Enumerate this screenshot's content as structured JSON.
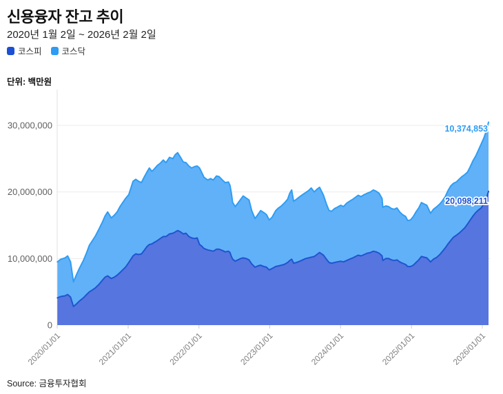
{
  "header": {
    "title": "신용융자 잔고 추이",
    "subtitle": "2020년 1월 2일 ~ 2026년 2월 2일",
    "unit_label": "단위: 백만원"
  },
  "legend": {
    "items": [
      {
        "label": "코스피",
        "color": "#1c50d4"
      },
      {
        "label": "코스닥",
        "color": "#2e9cf4"
      }
    ]
  },
  "source": "Source: 금융투자협회",
  "colors": {
    "grid": "#ebebeb",
    "axis": "#e2e2e2",
    "tick": "#cccccc",
    "y_label": "#5f5f5f",
    "x_label": "#808080",
    "kospi_fill": "#5775de",
    "kospi_line": "#1e55d0",
    "kosdaq_fill": "#61b1f8",
    "kosdaq_line": "#2f9df3"
  },
  "chart_data": {
    "type": "area",
    "stacked": true,
    "title": "신용융자 잔고 추이",
    "ylabel": "백만원",
    "grid": true,
    "legend_position": "top-left",
    "x_domain": [
      "2020-01-01",
      "2026-02-02"
    ],
    "ylim": [
      0,
      35000000
    ],
    "y_ticks": [
      0,
      10000000,
      20000000,
      30000000
    ],
    "y_tick_labels": [
      "0",
      "10,000,000",
      "20,000,000",
      "30,000,000"
    ],
    "x_ticks": [
      "2020-01-01",
      "2021-01-01",
      "2022-01-01",
      "2023-01-01",
      "2024-01-01",
      "2025-01-01",
      "2026-01-01"
    ],
    "x_tick_labels": [
      "2020/01/01",
      "2021/01/01",
      "2022/01/01",
      "2023/01/01",
      "2024/01/01",
      "2025/01/01",
      "2026/01/01"
    ],
    "dates": [
      "2020-01-02",
      "2020-01-20",
      "2020-02-10",
      "2020-02-24",
      "2020-03-10",
      "2020-03-25",
      "2020-04-10",
      "2020-04-24",
      "2020-05-15",
      "2020-06-01",
      "2020-06-15",
      "2020-07-01",
      "2020-07-16",
      "2020-08-03",
      "2020-08-20",
      "2020-09-04",
      "2020-09-17",
      "2020-10-06",
      "2020-10-21",
      "2020-11-05",
      "2020-11-20",
      "2020-12-04",
      "2020-12-18",
      "2021-01-04",
      "2021-01-15",
      "2021-01-26",
      "2021-02-09",
      "2021-02-24",
      "2021-03-10",
      "2021-03-24",
      "2021-04-08",
      "2021-04-20",
      "2021-05-03",
      "2021-05-14",
      "2021-06-01",
      "2021-06-15",
      "2021-07-01",
      "2021-07-15",
      "2021-08-02",
      "2021-08-19",
      "2021-09-01",
      "2021-09-13",
      "2021-09-28",
      "2021-10-12",
      "2021-10-26",
      "2021-11-10",
      "2021-11-24",
      "2021-12-09",
      "2021-12-23",
      "2022-01-04",
      "2022-01-14",
      "2022-01-27",
      "2022-02-15",
      "2022-03-02",
      "2022-03-16",
      "2022-04-01",
      "2022-04-15",
      "2022-05-02",
      "2022-05-16",
      "2022-06-02",
      "2022-06-10",
      "2022-06-17",
      "2022-06-24",
      "2022-07-07",
      "2022-07-20",
      "2022-08-04",
      "2022-08-17",
      "2022-09-01",
      "2022-09-16",
      "2022-09-30",
      "2022-10-17",
      "2022-11-01",
      "2022-11-15",
      "2022-12-01",
      "2022-12-15",
      "2022-12-29",
      "2023-01-13",
      "2023-02-01",
      "2023-02-15",
      "2023-03-02",
      "2023-03-16",
      "2023-04-03",
      "2023-04-14",
      "2023-04-24",
      "2023-05-04",
      "2023-05-19",
      "2023-06-05",
      "2023-06-20",
      "2023-07-05",
      "2023-07-20",
      "2023-08-03",
      "2023-08-18",
      "2023-09-01",
      "2023-09-15",
      "2023-10-05",
      "2023-10-20",
      "2023-11-03",
      "2023-11-16",
      "2023-12-01",
      "2023-12-15",
      "2024-01-02",
      "2024-01-16",
      "2024-02-01",
      "2024-02-16",
      "2024-03-04",
      "2024-03-18",
      "2024-04-01",
      "2024-04-16",
      "2024-05-02",
      "2024-05-17",
      "2024-06-03",
      "2024-06-18",
      "2024-07-03",
      "2024-07-18",
      "2024-08-02",
      "2024-08-06",
      "2024-08-21",
      "2024-09-05",
      "2024-09-20",
      "2024-10-04",
      "2024-10-18",
      "2024-11-01",
      "2024-11-15",
      "2024-12-02",
      "2024-12-12",
      "2024-12-27",
      "2025-01-10",
      "2025-01-24",
      "2025-02-07",
      "2025-02-21",
      "2025-03-07",
      "2025-03-21",
      "2025-04-09",
      "2025-04-24",
      "2025-05-12",
      "2025-05-27",
      "2025-06-10",
      "2025-06-24",
      "2025-07-08",
      "2025-07-22",
      "2025-08-05",
      "2025-08-20",
      "2025-09-03",
      "2025-09-18",
      "2025-10-02",
      "2025-10-17",
      "2025-10-31",
      "2025-11-14",
      "2025-11-28",
      "2025-12-12",
      "2025-12-26",
      "2026-01-09",
      "2026-01-23",
      "2026-02-02"
    ],
    "series": [
      {
        "name": "코스피",
        "values": [
          4100000,
          4300000,
          4400000,
          4600000,
          4200000,
          2800000,
          3200000,
          3600000,
          4100000,
          4600000,
          5000000,
          5300000,
          5600000,
          6100000,
          6700000,
          7200000,
          7400000,
          7000000,
          7200000,
          7500000,
          7900000,
          8300000,
          8700000,
          9400000,
          9900000,
          10400000,
          10700000,
          10600000,
          10700000,
          11200000,
          11800000,
          12100000,
          12200000,
          12400000,
          12700000,
          13000000,
          13300000,
          13300000,
          13700000,
          13800000,
          14000000,
          14200000,
          14000000,
          13700000,
          13800000,
          13300000,
          13100000,
          13000000,
          13100000,
          12100000,
          11900000,
          11500000,
          11300000,
          11200000,
          11100000,
          11400000,
          11400000,
          11200000,
          11000000,
          11100000,
          10900000,
          10300000,
          9900000,
          9600000,
          9800000,
          10000000,
          10100000,
          10000000,
          9800000,
          9200000,
          8700000,
          8900000,
          9000000,
          8800000,
          8700000,
          8300000,
          8500000,
          8800000,
          8900000,
          9000000,
          9100000,
          9400000,
          9700000,
          9900000,
          9300000,
          9400000,
          9600000,
          9800000,
          10000000,
          10100000,
          10200000,
          10300000,
          10600000,
          10900000,
          10500000,
          9900000,
          9400000,
          9300000,
          9400000,
          9500000,
          9600000,
          9500000,
          9700000,
          9900000,
          10100000,
          10300000,
          10500000,
          10400000,
          10600000,
          10800000,
          10900000,
          11100000,
          11000000,
          10800000,
          10400000,
          9700000,
          10000000,
          10000000,
          9800000,
          9700000,
          9800000,
          9500000,
          9300000,
          9100000,
          8800000,
          8800000,
          9000000,
          9400000,
          9800000,
          10300000,
          10200000,
          10100000,
          9500000,
          9900000,
          10200000,
          10600000,
          11100000,
          11600000,
          12200000,
          12700000,
          13200000,
          13500000,
          13800000,
          14200000,
          14600000,
          15200000,
          15800000,
          16400000,
          16900000,
          17300000,
          17600000,
          18200000,
          19100000,
          20098211
        ]
      },
      {
        "name": "코스닥",
        "values": [
          5400000,
          5600000,
          5700000,
          5800000,
          5300000,
          3700000,
          4400000,
          4900000,
          5600000,
          6300000,
          7000000,
          7400000,
          7800000,
          8300000,
          8700000,
          9200000,
          9600000,
          9100000,
          9300000,
          9500000,
          9900000,
          10100000,
          10300000,
          10200000,
          10700000,
          11200000,
          11200000,
          11000000,
          10700000,
          11000000,
          11200000,
          11500000,
          10900000,
          11000000,
          11300000,
          11300000,
          11500000,
          11100000,
          11500000,
          11200000,
          11600000,
          11700000,
          11200000,
          10800000,
          10600000,
          10600000,
          10500000,
          10800000,
          10800000,
          11500000,
          11100000,
          10700000,
          10500000,
          10800000,
          10700000,
          11000000,
          10900000,
          10600000,
          10400000,
          10400000,
          10100000,
          9500000,
          8500000,
          8200000,
          8500000,
          8900000,
          9300000,
          9100000,
          9000000,
          8000000,
          7300000,
          7700000,
          8200000,
          8100000,
          7900000,
          7500000,
          7700000,
          8400000,
          8700000,
          8900000,
          9200000,
          9500000,
          10100000,
          10400000,
          9300000,
          9500000,
          9700000,
          9800000,
          9900000,
          10100000,
          10400000,
          9700000,
          9800000,
          9800000,
          9000000,
          8300000,
          7800000,
          7800000,
          8100000,
          8200000,
          8400000,
          8300000,
          8600000,
          8700000,
          8800000,
          8900000,
          9000000,
          8900000,
          9000000,
          9000000,
          9100000,
          9200000,
          9100000,
          9000000,
          8600000,
          8000000,
          7900000,
          7800000,
          7700000,
          7700000,
          7800000,
          7500000,
          7300000,
          7200000,
          6900000,
          7000000,
          7300000,
          7600000,
          7800000,
          8100000,
          8000000,
          7900000,
          7300000,
          7500000,
          7600000,
          7600000,
          7600000,
          7700000,
          8000000,
          8200000,
          8100000,
          8000000,
          8100000,
          8100000,
          8000000,
          7800000,
          8000000,
          8300000,
          8500000,
          9000000,
          9600000,
          9900000,
          10200000,
          10374853
        ]
      }
    ],
    "end_labels": [
      {
        "series": "코스닥",
        "text": "10,374,853",
        "value": 10374853,
        "color": "#2e9cf4"
      },
      {
        "series": "코스피",
        "text": "20,098,211",
        "value": 20098211,
        "color": "#1e53d6"
      }
    ]
  }
}
